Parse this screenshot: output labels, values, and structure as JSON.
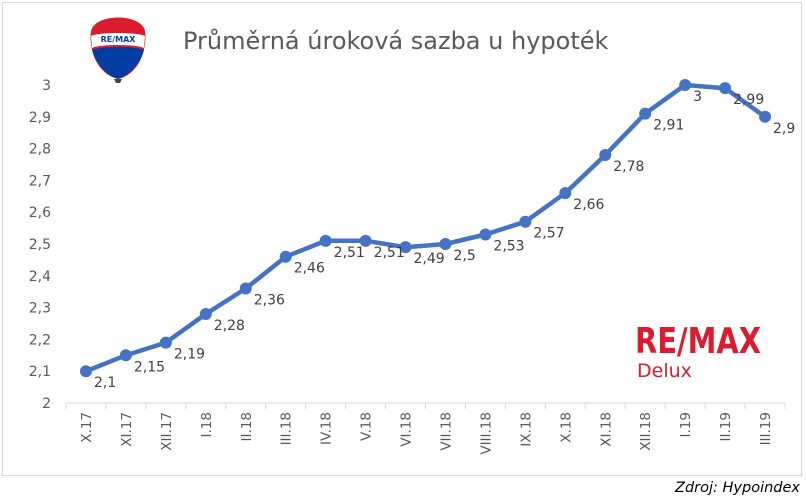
{
  "colors": {
    "line": "#4472c4",
    "brand_red": "#dc1c2e",
    "brand_blue": "#003da5",
    "axis_text": "#595959"
  },
  "branding": {
    "balloon_logo_text": "RE/MAX",
    "logo_text": "RE/MAX",
    "logo_subtext": "Delux"
  },
  "source": "Zdroj: Hypoindex",
  "chart_data": {
    "type": "line",
    "title": "Průměrná úroková sazba u hypoték",
    "xlabel": "",
    "ylabel": "",
    "ylim": [
      2,
      3
    ],
    "yticks": [
      "2",
      "2,1",
      "2,2",
      "2,3",
      "2,4",
      "2,5",
      "2,6",
      "2,7",
      "2,8",
      "2,9",
      "3"
    ],
    "grid": false,
    "legend": "none",
    "categories": [
      "X.17",
      "XI.17",
      "XII.17",
      "I.18",
      "II.18",
      "III.18",
      "IV.18",
      "V.18",
      "VI.18",
      "VII.18",
      "VIII.18",
      "IX.18",
      "X.18",
      "XI.18",
      "XII.18",
      "I.19",
      "II.19",
      "III.19"
    ],
    "series": [
      {
        "values": [
          2.1,
          2.15,
          2.19,
          2.28,
          2.36,
          2.46,
          2.51,
          2.51,
          2.49,
          2.5,
          2.53,
          2.57,
          2.66,
          2.78,
          2.91,
          3.0,
          2.99,
          2.9
        ],
        "labels": [
          "2,1",
          "2,15",
          "2,19",
          "2,28",
          "2,36",
          "2,46",
          "2,51",
          "2,51",
          "2,49",
          "2,5",
          "2,53",
          "2,57",
          "2,66",
          "2,78",
          "2,91",
          "3",
          "2,99",
          "2,9"
        ]
      }
    ]
  }
}
